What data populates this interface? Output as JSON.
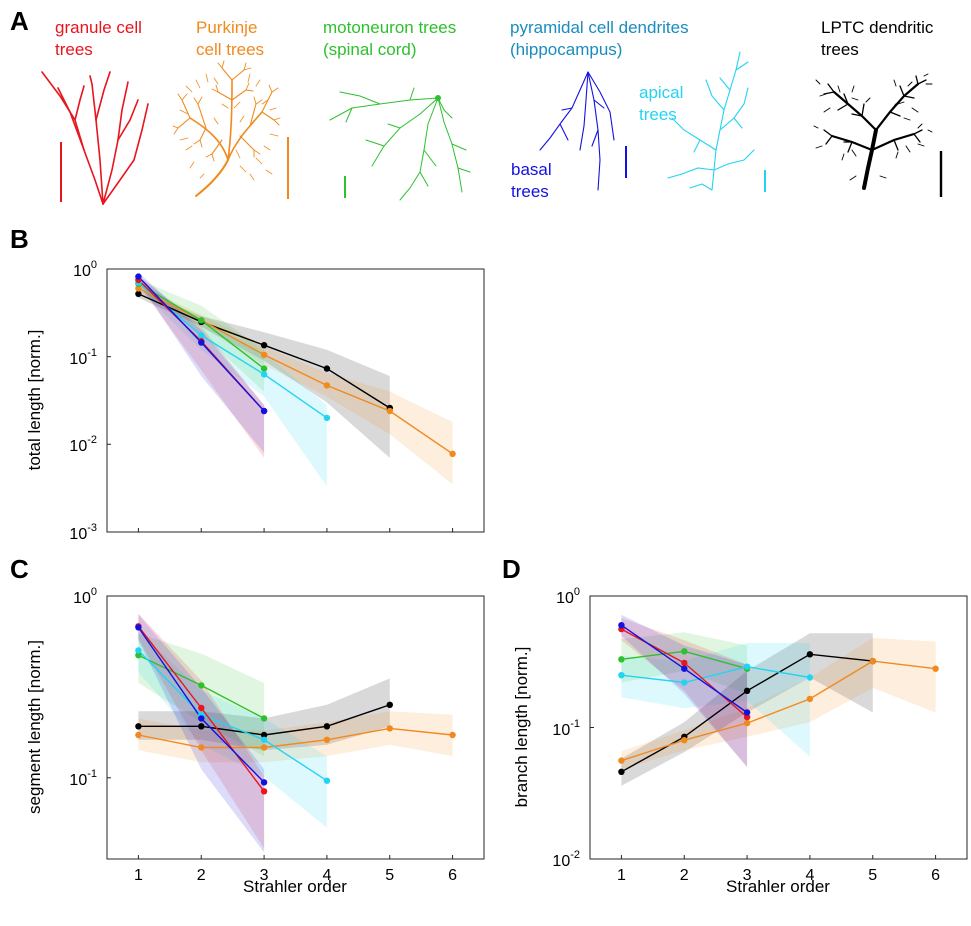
{
  "panel_letters": {
    "a": "A",
    "b": "B",
    "c": "C",
    "d": "D"
  },
  "cell_types": [
    {
      "id": "granule",
      "line1": "granule cell",
      "line2": "trees",
      "color": "#e8141e"
    },
    {
      "id": "purkinje",
      "line1": "Purkinje",
      "line2": "cell trees",
      "color": "#f08a1e"
    },
    {
      "id": "motoneuron",
      "line1": "motoneuron trees",
      "line2": "(spinal cord)",
      "color": "#2ec02e"
    },
    {
      "id": "pyramidal",
      "line1": "pyramidal cell dendrites",
      "line2": "(hippocampus)",
      "color": "#1a8cbe"
    },
    {
      "id": "basal",
      "line1": "basal",
      "line2": "trees",
      "color": "#1212e0"
    },
    {
      "id": "apical",
      "line1": "apical",
      "line2": "trees",
      "color": "#22d4f2"
    },
    {
      "id": "lptc",
      "line1": "LPTC dendritic",
      "line2": "trees",
      "color": "#000000"
    }
  ],
  "axis_text": {
    "xlabel": "Strahler order",
    "ylabel_B": "total length [norm.]",
    "ylabel_C": "segment length [norm.]",
    "ylabel_D": "branch length [norm.]",
    "x_ticks": [
      "1",
      "2",
      "3",
      "4",
      "5",
      "6"
    ],
    "y_ticks_B": [
      "10",
      "10",
      "10",
      "10"
    ],
    "y_exps_B": [
      "0",
      "-1",
      "-2",
      "-3"
    ],
    "y_ticks_C": [
      "10",
      "10"
    ],
    "y_exps_C": [
      "0",
      "-1"
    ],
    "y_ticks_D": [
      "10",
      "10",
      "10"
    ],
    "y_exps_D": [
      "0",
      "-1",
      "-2"
    ]
  },
  "chart_data": [
    {
      "panel": "B",
      "type": "line",
      "xlabel": "Strahler order",
      "ylabel": "total length [norm.]",
      "yscale": "log",
      "xlim": [
        0.5,
        6.5
      ],
      "ylim": [
        0.001,
        1
      ],
      "series": [
        {
          "id": "lptc",
          "color": "#000000",
          "x": [
            1,
            2,
            3,
            4,
            5
          ],
          "y": [
            0.52,
            0.25,
            0.135,
            0.073,
            0.026
          ],
          "band_low": [
            0.47,
            0.22,
            0.09,
            0.03,
            0.007
          ],
          "band_high": [
            0.58,
            0.29,
            0.19,
            0.12,
            0.06
          ]
        },
        {
          "id": "purkinje",
          "color": "#f08a1e",
          "x": [
            1,
            2,
            3,
            4,
            5,
            6
          ],
          "y": [
            0.6,
            0.26,
            0.105,
            0.047,
            0.024,
            0.0078
          ],
          "band_low": [
            0.55,
            0.22,
            0.08,
            0.035,
            0.013,
            0.0035
          ],
          "band_high": [
            0.66,
            0.3,
            0.13,
            0.065,
            0.04,
            0.018
          ]
        },
        {
          "id": "motoneuron",
          "color": "#2ec02e",
          "x": [
            1,
            2,
            3
          ],
          "y": [
            0.68,
            0.26,
            0.073
          ],
          "band_low": [
            0.6,
            0.18,
            0.04
          ],
          "band_high": [
            0.76,
            0.38,
            0.12
          ]
        },
        {
          "id": "apical",
          "color": "#22d4f2",
          "x": [
            1,
            2,
            3,
            4
          ],
          "y": [
            0.7,
            0.175,
            0.063,
            0.02
          ],
          "band_low": [
            0.6,
            0.12,
            0.035,
            0.0033
          ],
          "band_high": [
            0.8,
            0.25,
            0.11,
            0.028
          ]
        },
        {
          "id": "granule",
          "color": "#e8141e",
          "x": [
            1,
            2,
            3
          ],
          "y": [
            0.75,
            0.15,
            0.024
          ],
          "band_low": [
            0.66,
            0.07,
            0.007
          ],
          "band_high": [
            0.85,
            0.22,
            0.028
          ]
        },
        {
          "id": "basal",
          "color": "#1212e0",
          "x": [
            1,
            2,
            3
          ],
          "y": [
            0.82,
            0.145,
            0.024
          ],
          "band_low": [
            0.72,
            0.06,
            0.008
          ],
          "band_high": [
            0.92,
            0.2,
            0.028
          ]
        }
      ]
    },
    {
      "panel": "C",
      "type": "line",
      "xlabel": "Strahler order",
      "ylabel": "segment length [norm.]",
      "yscale": "log",
      "xlim": [
        0.5,
        6.5
      ],
      "ylim": [
        0.035,
        1
      ],
      "series": [
        {
          "id": "lptc",
          "color": "#000000",
          "x": [
            1,
            2,
            3,
            4,
            5
          ],
          "y": [
            0.19,
            0.19,
            0.17,
            0.19,
            0.25
          ],
          "band_low": [
            0.16,
            0.16,
            0.14,
            0.15,
            0.19
          ],
          "band_high": [
            0.23,
            0.23,
            0.21,
            0.25,
            0.35
          ]
        },
        {
          "id": "purkinje",
          "color": "#f08a1e",
          "x": [
            1,
            2,
            3,
            4,
            5,
            6
          ],
          "y": [
            0.17,
            0.145,
            0.145,
            0.16,
            0.185,
            0.17
          ],
          "band_low": [
            0.14,
            0.12,
            0.12,
            0.13,
            0.15,
            0.13
          ],
          "band_high": [
            0.21,
            0.18,
            0.18,
            0.2,
            0.23,
            0.22
          ]
        },
        {
          "id": "motoneuron",
          "color": "#2ec02e",
          "x": [
            1,
            2,
            3
          ],
          "y": [
            0.47,
            0.32,
            0.21
          ],
          "band_low": [
            0.33,
            0.2,
            0.13
          ],
          "band_high": [
            0.62,
            0.48,
            0.33
          ]
        },
        {
          "id": "apical",
          "color": "#22d4f2",
          "x": [
            1,
            2,
            3,
            4
          ],
          "y": [
            0.5,
            0.22,
            0.16,
            0.095
          ],
          "band_low": [
            0.38,
            0.15,
            0.1,
            0.052
          ],
          "band_high": [
            0.64,
            0.3,
            0.21,
            0.13
          ]
        },
        {
          "id": "granule",
          "color": "#e8141e",
          "x": [
            1,
            2,
            3
          ],
          "y": [
            0.68,
            0.24,
            0.083
          ],
          "band_low": [
            0.58,
            0.14,
            0.04
          ],
          "band_high": [
            0.8,
            0.34,
            0.1
          ]
        },
        {
          "id": "basal",
          "color": "#1212e0",
          "x": [
            1,
            2,
            3
          ],
          "y": [
            0.67,
            0.21,
            0.093
          ],
          "band_low": [
            0.57,
            0.11,
            0.038
          ],
          "band_high": [
            0.79,
            0.31,
            0.11
          ]
        }
      ]
    },
    {
      "panel": "D",
      "type": "line",
      "xlabel": "Strahler order",
      "ylabel": "branch length [norm.]",
      "yscale": "log",
      "xlim": [
        0.5,
        6.5
      ],
      "ylim": [
        0.01,
        1
      ],
      "series": [
        {
          "id": "lptc",
          "color": "#000000",
          "x": [
            1,
            2,
            3,
            4,
            5
          ],
          "y": [
            0.046,
            0.085,
            0.19,
            0.36,
            0.32
          ],
          "band_low": [
            0.036,
            0.065,
            0.13,
            0.24,
            0.13
          ],
          "band_high": [
            0.058,
            0.11,
            0.27,
            0.52,
            0.52
          ]
        },
        {
          "id": "purkinje",
          "color": "#f08a1e",
          "x": [
            1,
            2,
            3,
            4,
            5,
            6
          ],
          "y": [
            0.056,
            0.08,
            0.108,
            0.165,
            0.32,
            0.28
          ],
          "band_low": [
            0.048,
            0.067,
            0.085,
            0.11,
            0.2,
            0.13
          ],
          "band_high": [
            0.066,
            0.095,
            0.14,
            0.24,
            0.48,
            0.45
          ]
        },
        {
          "id": "motoneuron",
          "color": "#2ec02e",
          "x": [
            1,
            2,
            3
          ],
          "y": [
            0.33,
            0.38,
            0.28
          ],
          "band_low": [
            0.22,
            0.27,
            0.18
          ],
          "band_high": [
            0.47,
            0.53,
            0.42
          ]
        },
        {
          "id": "apical",
          "color": "#22d4f2",
          "x": [
            1,
            2,
            3,
            4
          ],
          "y": [
            0.25,
            0.22,
            0.29,
            0.24
          ],
          "band_low": [
            0.17,
            0.14,
            0.16,
            0.06
          ],
          "band_high": [
            0.35,
            0.32,
            0.44,
            0.44
          ]
        },
        {
          "id": "granule",
          "color": "#e8141e",
          "x": [
            1,
            2,
            3
          ],
          "y": [
            0.56,
            0.31,
            0.12
          ],
          "band_low": [
            0.46,
            0.19,
            0.05
          ],
          "band_high": [
            0.68,
            0.46,
            0.3
          ]
        },
        {
          "id": "basal",
          "color": "#1212e0",
          "x": [
            1,
            2,
            3
          ],
          "y": [
            0.6,
            0.28,
            0.13
          ],
          "band_low": [
            0.5,
            0.18,
            0.05
          ],
          "band_high": [
            0.72,
            0.42,
            0.3
          ]
        }
      ]
    }
  ]
}
